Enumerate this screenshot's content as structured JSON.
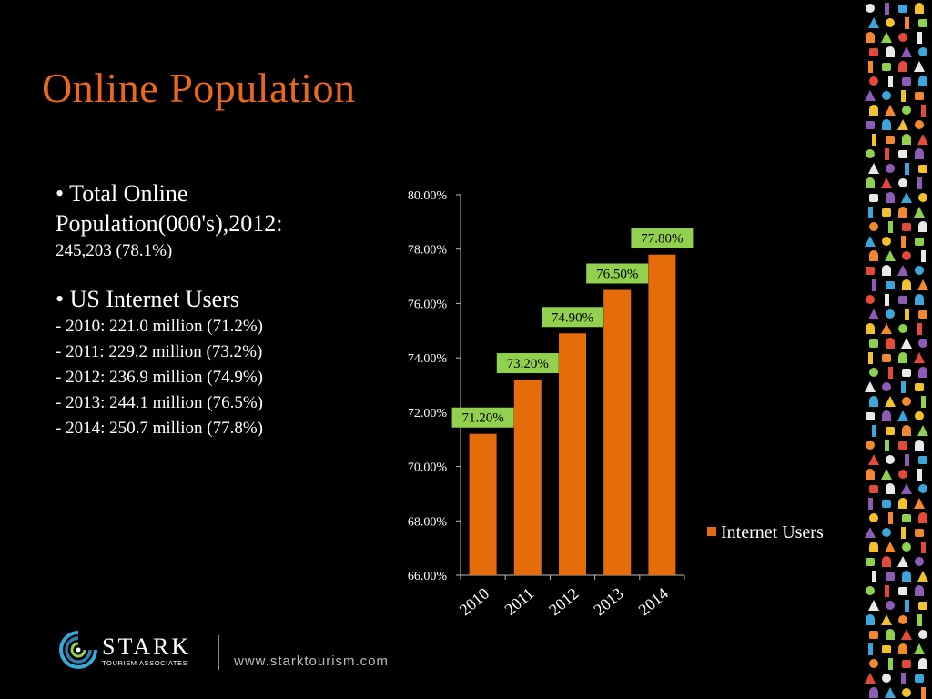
{
  "slide": {
    "title": "Online Population",
    "bullet1_head": "• Total Online Population(000's),2012:",
    "bullet1_value": "245,203 (78.1%)",
    "bullet2_head": "• US Internet Users",
    "bullet2_items": [
      "- 2010: 221.0 million (71.2%)",
      "- 2011: 229.2 million (73.2%)",
      "- 2012: 236.9 million (74.9%)",
      "- 2013: 244.1 million (76.5%)",
      "- 2014: 250.7 million (77.8%)"
    ]
  },
  "logo": {
    "brand": "STARK",
    "subtitle": "TOURISM ASSOCIATES",
    "url": "www.starktourism.com"
  },
  "colors": {
    "title": "#e8691e",
    "bar": "#e46c0a",
    "data_label_bg": "#92d050"
  },
  "decoration": {
    "right_strip": "travel-icons-pattern"
  },
  "chart_data": {
    "type": "bar",
    "categories": [
      "2010",
      "2011",
      "2012",
      "2013",
      "2014"
    ],
    "series": [
      {
        "name": "Internet Users",
        "values": [
          71.2,
          73.2,
          74.9,
          76.5,
          77.8
        ]
      }
    ],
    "data_labels": [
      "71.20%",
      "73.20%",
      "74.90%",
      "76.50%",
      "77.80%"
    ],
    "yticks": [
      "66.00%",
      "68.00%",
      "70.00%",
      "72.00%",
      "74.00%",
      "76.00%",
      "78.00%",
      "80.00%"
    ],
    "ylim": [
      66,
      80
    ],
    "legend_position": "right",
    "grid": false
  }
}
